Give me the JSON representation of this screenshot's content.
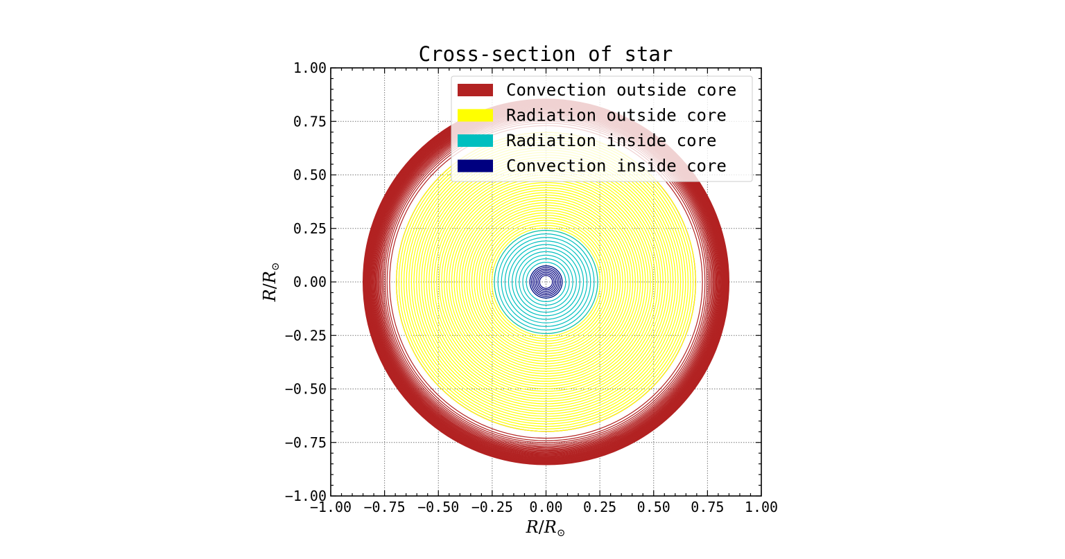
{
  "chart_data": {
    "type": "scatter",
    "title": "Cross-section of star",
    "xlabel_symbol": "R",
    "xlabel_sub": "⊙",
    "ylabel_symbol": "R",
    "ylabel_sub": "⊙",
    "xlim": [
      -1.0,
      1.0
    ],
    "ylim": [
      -1.0,
      1.0
    ],
    "xticks": [
      "−1.00",
      "−0.75",
      "−0.50",
      "−0.25",
      "0.00",
      "0.25",
      "0.50",
      "0.75",
      "1.00"
    ],
    "yticks": [
      "1.00",
      "0.75",
      "0.50",
      "0.25",
      "0.00",
      "−0.25",
      "−0.50",
      "−0.75",
      "−1.00"
    ],
    "grid": true,
    "legend_position": "upper-right",
    "series": [
      {
        "name": "Convection outside core",
        "color": "#b22222",
        "r_min": 0.695,
        "r_max": 0.85
      },
      {
        "name": "Radiation outside core",
        "color": "#ffff00",
        "r_min": 0.24,
        "r_max": 0.695
      },
      {
        "name": "Radiation inside core",
        "color": "#00bfbf",
        "r_min": 0.075,
        "r_max": 0.24
      },
      {
        "name": "Convection inside core",
        "color": "#000080",
        "r_min": 0.03,
        "r_max": 0.075
      }
    ]
  }
}
